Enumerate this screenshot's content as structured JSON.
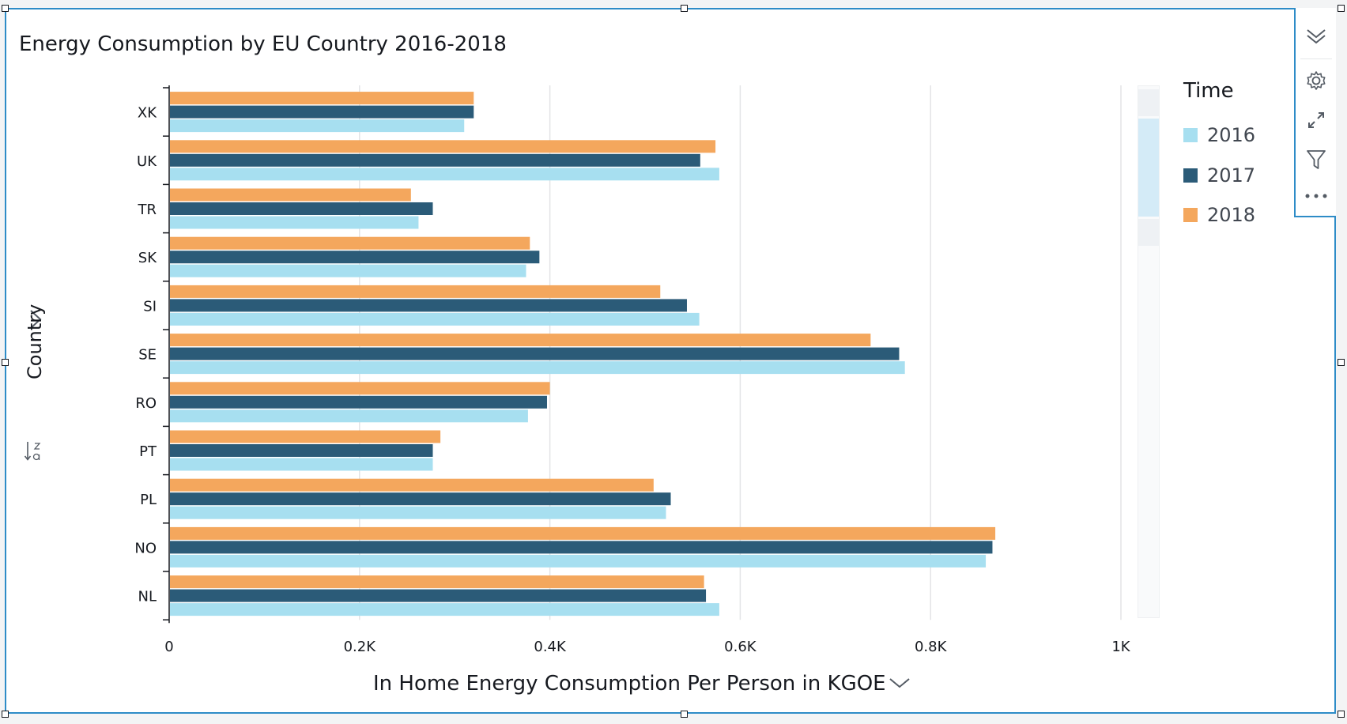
{
  "visual": {
    "title": "Energy Consumption by EU Country 2016-2018",
    "x_axis_title": "In Home Energy Consumption Per Person in KGOE",
    "y_axis_title": "Country",
    "legend_title": "Time"
  },
  "toolbar": {
    "icons": [
      "chevron-down-double-icon",
      "gear-icon",
      "expand-icon",
      "filter-icon",
      "more-icon"
    ]
  },
  "colors": {
    "2016": "#a7dff0",
    "2017": "#2b5b78",
    "2018": "#f4a75d",
    "accent": "#2e8cc7",
    "gridline": "#e3e4e6"
  },
  "chart_data": {
    "type": "bar",
    "orientation": "horizontal",
    "categories": [
      "XK",
      "UK",
      "TR",
      "SK",
      "SI",
      "SE",
      "RO",
      "PT",
      "PL",
      "NO",
      "NL"
    ],
    "series": [
      {
        "name": "2016",
        "values": [
          310,
          578,
          262,
          375,
          557,
          773,
          377,
          277,
          522,
          858,
          578
        ]
      },
      {
        "name": "2017",
        "values": [
          320,
          558,
          277,
          389,
          544,
          767,
          397,
          277,
          527,
          865,
          564
        ]
      },
      {
        "name": "2018",
        "values": [
          320,
          574,
          254,
          379,
          516,
          737,
          400,
          285,
          509,
          868,
          562
        ]
      }
    ],
    "xlim": [
      0,
      1000
    ],
    "x_ticks": [
      0,
      200,
      400,
      600,
      800,
      1000
    ],
    "x_tick_labels": [
      "0",
      "0.2K",
      "0.4K",
      "0.6K",
      "0.8K",
      "1K"
    ],
    "grid": true,
    "legend_position": "right"
  }
}
